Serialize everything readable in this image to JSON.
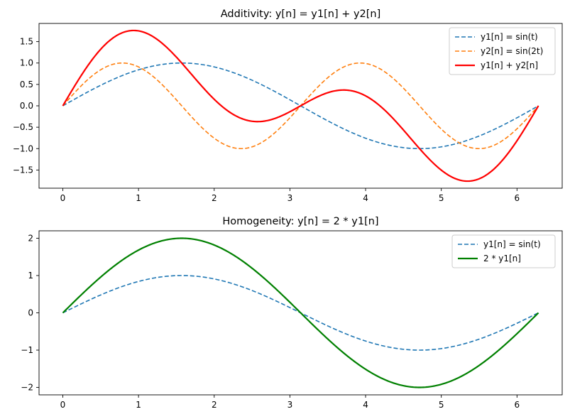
{
  "chart_data": [
    {
      "type": "line",
      "title": "Additivity: y[n] = y1[n] + y2[n]",
      "xlabel": "",
      "ylabel": "",
      "xlim": [
        -0.314,
        6.597
      ],
      "ylim": [
        -1.925,
        1.925
      ],
      "xticks": [
        0,
        1,
        2,
        3,
        4,
        5,
        6
      ],
      "yticks": [
        -1.5,
        -1.0,
        -0.5,
        0.0,
        0.5,
        1.0,
        1.5
      ],
      "ytick_labels": [
        "−1.5",
        "−1.0",
        "−0.5",
        "0.0",
        "0.5",
        "1.0",
        "1.5"
      ],
      "grid": false,
      "legend": "top-right",
      "series": [
        {
          "name": "y1[n] = sin(t)",
          "color": "#1f77b4",
          "style": "dashed",
          "func": "sin1",
          "x": [
            0,
            0.785,
            1.571,
            2.356,
            3.142,
            3.927,
            4.712,
            5.498,
            6.283
          ],
          "values": [
            0,
            0.707,
            1.0,
            0.707,
            0,
            -0.707,
            -1.0,
            -0.707,
            0
          ]
        },
        {
          "name": "y2[n] = sin(2t)",
          "color": "#ff7f0e",
          "style": "dashed",
          "func": "sin2",
          "x": [
            0,
            0.785,
            1.571,
            2.356,
            3.142,
            3.927,
            4.712,
            5.498,
            6.283
          ],
          "values": [
            0,
            1.0,
            0,
            -1.0,
            0,
            1.0,
            0,
            -1.0,
            0
          ]
        },
        {
          "name": "y1[n] + y2[n]",
          "color": "#ff0000",
          "style": "solid",
          "func": "sum",
          "x": [
            0,
            0.936,
            1.571,
            2.574,
            3.142,
            3.709,
            4.712,
            5.347,
            6.283
          ],
          "values": [
            0,
            1.76,
            1.0,
            -0.369,
            0,
            0.369,
            -1.0,
            -1.76,
            0
          ]
        }
      ]
    },
    {
      "type": "line",
      "title": "Homogeneity: y[n] = 2 * y1[n]",
      "xlabel": "",
      "ylabel": "",
      "xlim": [
        -0.314,
        6.597
      ],
      "ylim": [
        -2.2,
        2.2
      ],
      "xticks": [
        0,
        1,
        2,
        3,
        4,
        5,
        6
      ],
      "yticks": [
        -2,
        -1,
        0,
        1,
        2
      ],
      "ytick_labels": [
        "−2",
        "−1",
        "0",
        "1",
        "2"
      ],
      "grid": false,
      "legend": "top-right",
      "series": [
        {
          "name": "y1[n] = sin(t)",
          "color": "#1f77b4",
          "style": "dashed",
          "func": "sin1",
          "x": [
            0,
            0.785,
            1.571,
            2.356,
            3.142,
            3.927,
            4.712,
            5.498,
            6.283
          ],
          "values": [
            0,
            0.707,
            1.0,
            0.707,
            0,
            -0.707,
            -1.0,
            -0.707,
            0
          ]
        },
        {
          "name": "2 * y1[n]",
          "color": "#008000",
          "style": "solid",
          "func": "double",
          "x": [
            0,
            0.785,
            1.571,
            2.356,
            3.142,
            3.927,
            4.712,
            5.498,
            6.283
          ],
          "values": [
            0,
            1.414,
            2.0,
            1.414,
            0,
            -1.414,
            -2.0,
            -1.414,
            0
          ]
        }
      ]
    }
  ]
}
